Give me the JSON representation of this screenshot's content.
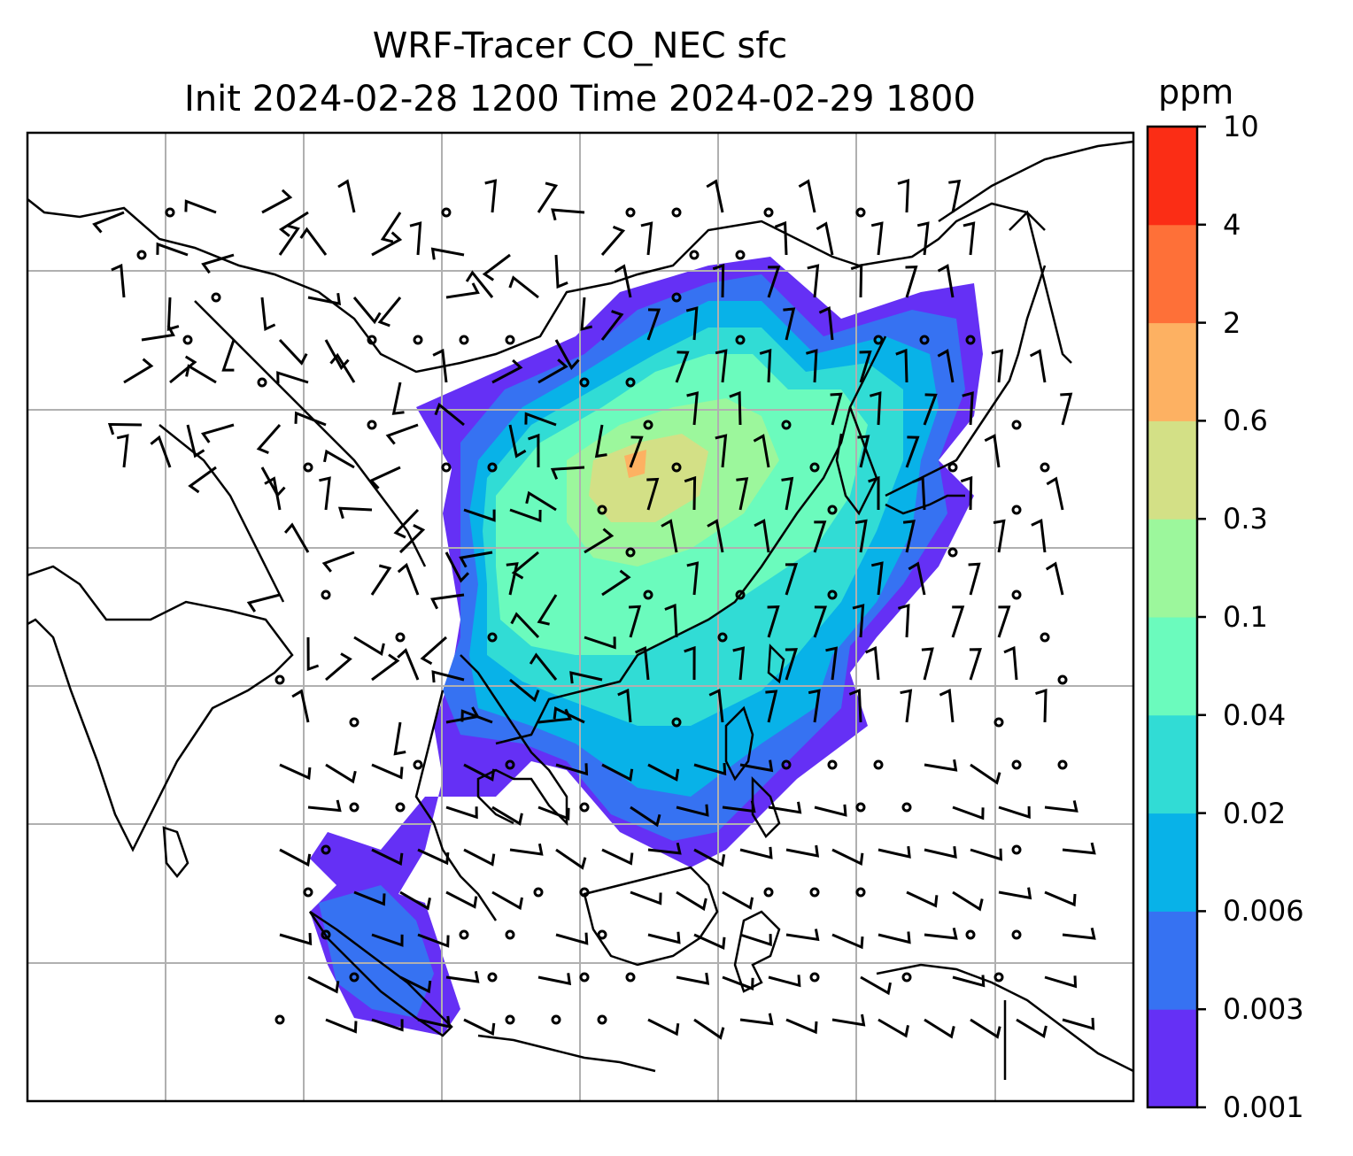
{
  "title": {
    "line1": "WRF-Tracer CO_NEC sfc",
    "line2": "Init 2024-02-28 1200 Time 2024-02-29 1800"
  },
  "colorbar": {
    "unit": "ppm",
    "levels": [
      "0.001",
      "0.003",
      "0.006",
      "0.02",
      "0.04",
      "0.1",
      "0.3",
      "0.6",
      "2",
      "4",
      "10"
    ],
    "colors": [
      "#6530f5",
      "#3672f2",
      "#08b2e8",
      "#31dcd5",
      "#6bfbbd",
      "#9cf79c",
      "#d3e086",
      "#fdb162",
      "#fe7038",
      "#fb2d15"
    ]
  },
  "map": {
    "plume_color_levels": [
      "#6530f5",
      "#3672f2",
      "#08b2e8",
      "#31dcd5",
      "#6bfbbd",
      "#9cf79c",
      "#d3e086",
      "#fdb162"
    ],
    "gridline_color": "#b0b0b0",
    "coastline_color": "#000000"
  }
}
